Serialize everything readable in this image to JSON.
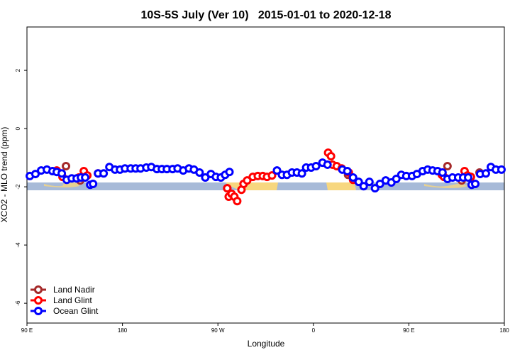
{
  "chart_data": {
    "type": "scatter",
    "title": "10S-5S July (Ver 10)   2015-01-01 to 2020-12-18",
    "x_label": "Longitude",
    "y_label": "XCO2 - MLO trend (ppm)",
    "xlim": [
      90,
      540
    ],
    "ylim": [
      -6.68,
      3.49
    ],
    "xticks": [
      {
        "value": 90,
        "label": "90 E"
      },
      180,
      {
        "value": 270,
        "label": "90 W"
      },
      {
        "value": 360,
        "label": "0"
      },
      {
        "value": 450,
        "label": "90 E"
      },
      {
        "value": 540,
        "label": "180"
      }
    ],
    "yticks": [
      -6,
      -4,
      -2,
      0,
      2
    ],
    "legend": "bottom-left",
    "series": [
      {
        "name": "Land Nadir",
        "color": "#a52a2a",
        "x": [
          126.8,
          140.2,
          278.8,
          392.7,
          486.4,
          499.8,
          516.6
        ],
        "values": [
          -1.29,
          -1.78,
          -2.05,
          -1.59,
          -1.29,
          -1.78,
          -1.51
        ]
      },
      {
        "name": "Land Glint",
        "color": "#ff0000",
        "x": [
          118.1,
          123.5,
          138.9,
          143.6,
          146.9,
          157.0,
          278.8,
          280.2,
          282.9,
          285.5,
          288.2,
          292.2,
          294.2,
          297.6,
          302.9,
          307.6,
          312.3,
          316.3,
          321.0,
          373.9,
          376.6,
          378.0,
          382.0,
          386.7,
          393.4,
          397.4,
          481.1,
          483.1,
          502.5,
          505.2,
          508.5
        ],
        "values": [
          -1.44,
          -1.66,
          -1.68,
          -1.46,
          -1.61,
          -1.54,
          -2.05,
          -2.34,
          -2.24,
          -2.34,
          -2.49,
          -2.1,
          -1.9,
          -1.78,
          -1.66,
          -1.63,
          -1.63,
          -1.66,
          -1.61,
          -0.83,
          -0.95,
          -1.24,
          -1.29,
          -1.37,
          -1.51,
          -1.76,
          -1.59,
          -1.66,
          -1.46,
          -1.61,
          -1.66
        ]
      },
      {
        "name": "Ocean Glint",
        "color": "#0000ff",
        "x": [
          92.7,
          98.0,
          103.4,
          108.8,
          114.1,
          118.1,
          122.8,
          127.5,
          132.2,
          136.9,
          140.9,
          144.9,
          149.6,
          152.3,
          157.0,
          162.3,
          167.7,
          173.0,
          177.7,
          182.4,
          187.8,
          192.5,
          197.1,
          202.5,
          207.2,
          212.5,
          217.2,
          221.9,
          227.3,
          232.0,
          237.3,
          242.7,
          247.4,
          252.7,
          258.1,
          263.4,
          268.1,
          272.8,
          276.8,
          280.9,
          325.7,
          330.4,
          335.1,
          339.8,
          344.5,
          349.2,
          353.2,
          357.9,
          362.5,
          368.6,
          373.3,
          387.3,
          392.0,
          397.4,
          402.7,
          407.4,
          412.8,
          418.1,
          422.8,
          428.2,
          433.5,
          438.2,
          442.9,
          447.6,
          453.0,
          457.6,
          463.0,
          467.7,
          472.4,
          477.1,
          481.7,
          486.4,
          491.1,
          496.5,
          501.2,
          505.9,
          509.2,
          512.6,
          517.2,
          522.6,
          527.3,
          532.0,
          537.3
        ],
        "values": [
          -1.63,
          -1.56,
          -1.44,
          -1.41,
          -1.46,
          -1.49,
          -1.54,
          -1.76,
          -1.71,
          -1.71,
          -1.68,
          -1.68,
          -1.93,
          -1.9,
          -1.54,
          -1.54,
          -1.32,
          -1.41,
          -1.41,
          -1.37,
          -1.37,
          -1.37,
          -1.37,
          -1.34,
          -1.32,
          -1.39,
          -1.39,
          -1.39,
          -1.39,
          -1.37,
          -1.44,
          -1.37,
          -1.41,
          -1.51,
          -1.68,
          -1.56,
          -1.66,
          -1.68,
          -1.59,
          -1.49,
          -1.44,
          -1.59,
          -1.59,
          -1.51,
          -1.51,
          -1.54,
          -1.34,
          -1.34,
          -1.29,
          -1.17,
          -1.24,
          -1.41,
          -1.46,
          -1.68,
          -1.83,
          -1.98,
          -1.83,
          -2.05,
          -1.9,
          -1.78,
          -1.85,
          -1.73,
          -1.59,
          -1.63,
          -1.63,
          -1.56,
          -1.46,
          -1.41,
          -1.44,
          -1.46,
          -1.51,
          -1.73,
          -1.68,
          -1.68,
          -1.68,
          -1.68,
          -1.93,
          -1.9,
          -1.56,
          -1.54,
          -1.32,
          -1.41,
          -1.41
        ]
      }
    ]
  }
}
